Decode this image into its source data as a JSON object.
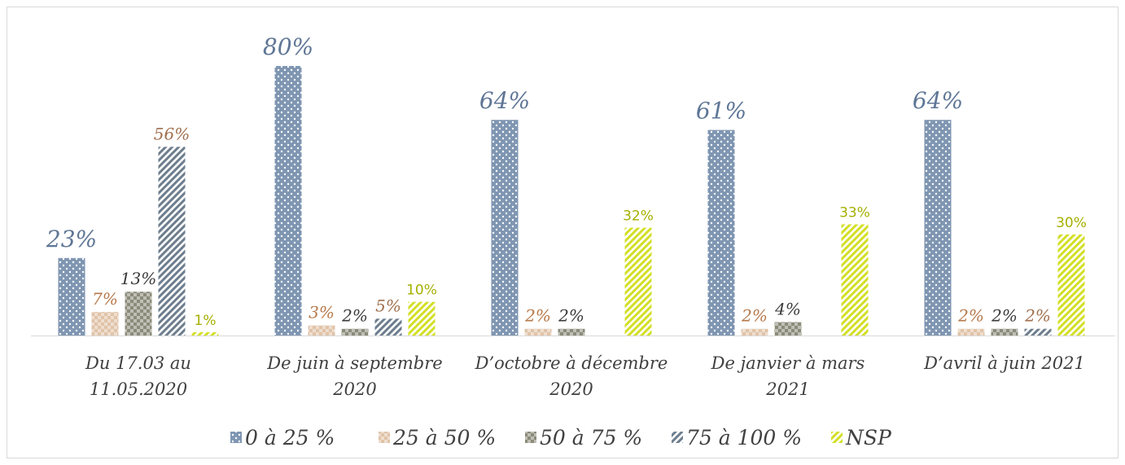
{
  "chart_data": {
    "type": "bar",
    "categories": [
      "Du 17.03 au 11.05.2020",
      "De juin à septembre 2020",
      "D’octobre à décembre 2020",
      "De janvier à mars 2021",
      "D’avril à juin 2021"
    ],
    "series": [
      {
        "name": "0 à 25 %",
        "color": "#7f96b2",
        "pattern": "dots",
        "label_color": "#5f7696",
        "values": [
          23,
          80,
          64,
          61,
          64
        ],
        "value_labels": [
          "23%",
          "80%",
          "64%",
          "61%",
          "64%"
        ]
      },
      {
        "name": "25 à 50 %",
        "color": "#dfc3a8",
        "pattern": "checker",
        "label_color": "#b5784a",
        "values": [
          7,
          3,
          2,
          2,
          2
        ],
        "value_labels": [
          "7%",
          "3%",
          "2%",
          "2%",
          "2%"
        ]
      },
      {
        "name": "50 à 75 %",
        "color": "#8b8b79",
        "pattern": "checker",
        "label_color": "#3a3a3a",
        "values": [
          13,
          2,
          2,
          4,
          2
        ],
        "value_labels": [
          "13%",
          "2%",
          "2%",
          "4%",
          "2%"
        ]
      },
      {
        "name": "75 à 100 %",
        "color": "#6d7d8e",
        "pattern": "stripes",
        "label_color": "#a0704e",
        "values": [
          56,
          5,
          null,
          null,
          2
        ],
        "value_labels": [
          "56%",
          "5%",
          null,
          null,
          "2%"
        ]
      },
      {
        "name": "NSP",
        "color": "#d3df26",
        "pattern": "stripes",
        "label_color": "#a5b000",
        "values": [
          1,
          10,
          32,
          33,
          30
        ],
        "value_labels": [
          "1%",
          "10%",
          "32%",
          "33%",
          "30%"
        ]
      }
    ]
  }
}
